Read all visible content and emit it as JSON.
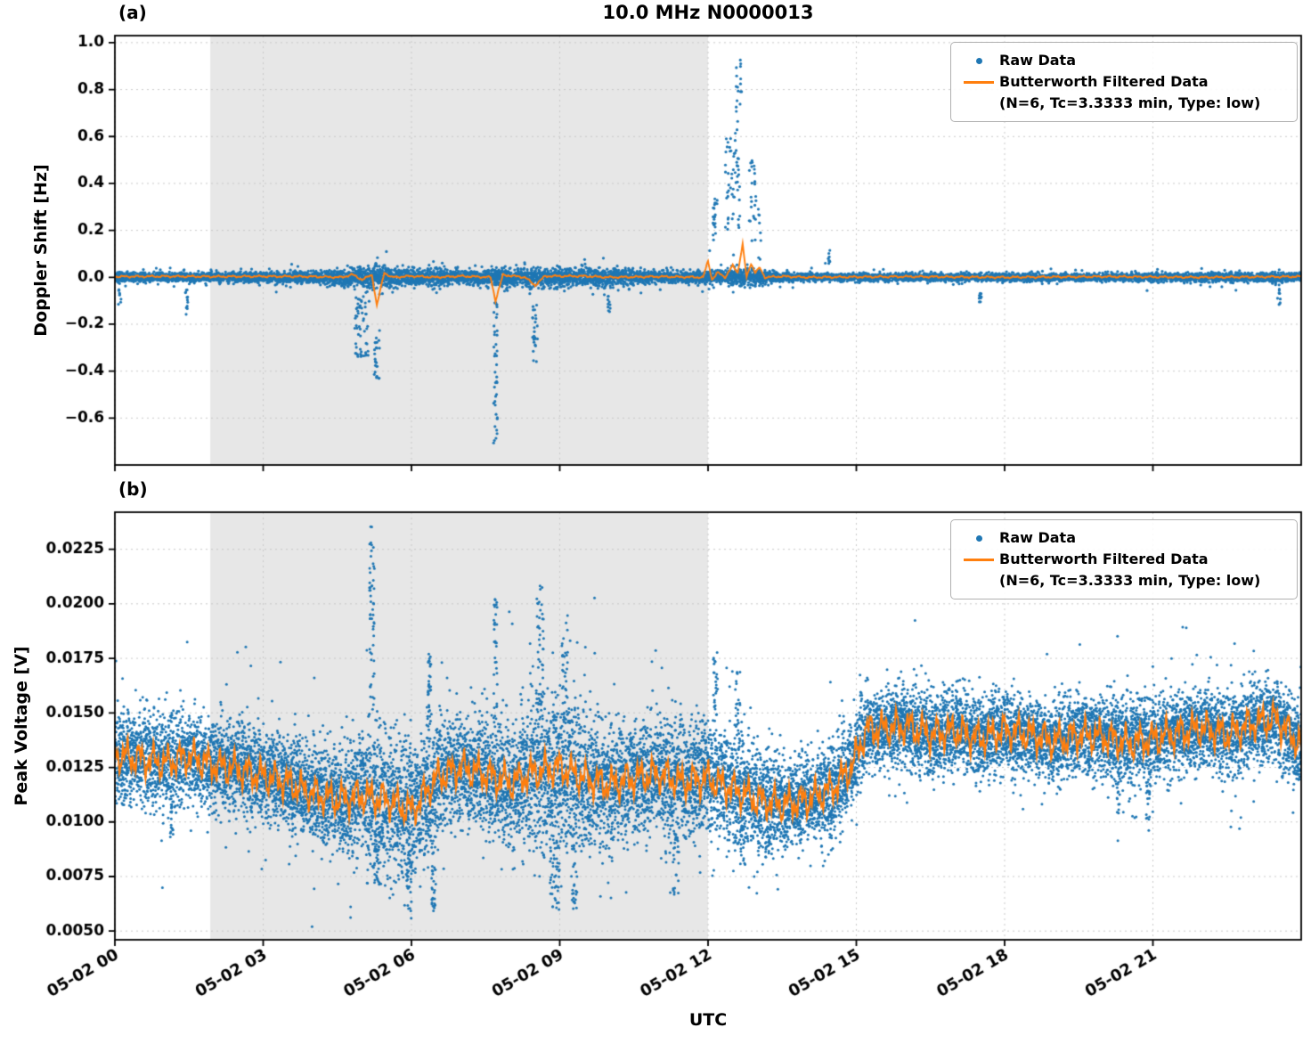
{
  "chart_data": {
    "type": "scatter",
    "title": "10.0 MHz N0000013",
    "xlabel": "UTC",
    "colors": {
      "raw": "#1f77b4",
      "filtered": "#ff7f0e",
      "shade": "#e7e7e7",
      "grid": "#c9c9c9",
      "axis": "#000000"
    },
    "legend": {
      "raw_label": "Raw Data",
      "filtered_label": "Butterworth Filtered Data",
      "filtered_sublabel": "(N=6, Tc=3.3333 min, Type: low)"
    },
    "shaded_region_hours": [
      1.93,
      12.0
    ],
    "x": {
      "lim": [
        0,
        24
      ],
      "ticks": [
        0,
        3,
        6,
        9,
        12,
        15,
        18,
        21
      ],
      "tick_labels": [
        "05-02 00",
        "05-02 03",
        "05-02 06",
        "05-02 09",
        "05-02 12",
        "05-02 15",
        "05-02 18",
        "05-02 21"
      ]
    },
    "panels": [
      {
        "panel_label": "(a)",
        "ylabel": "Doppler Shift [Hz]",
        "ylim": [
          -0.8,
          1.03
        ],
        "yticks": [
          1.0,
          0.8,
          0.6,
          0.4,
          0.2,
          0.0,
          -0.2,
          -0.4,
          -0.6
        ],
        "ytick_labels": [
          "1.0",
          "0.8",
          "0.6",
          "0.4",
          "0.2",
          "0.0",
          "−0.2",
          "−0.4",
          "−0.6"
        ],
        "raw_band": {
          "samples_per_hour": 400,
          "points": [
            [
              0,
              0,
              0.01
            ],
            [
              2,
              0,
              0.01
            ],
            [
              3,
              0,
              0.011
            ],
            [
              4,
              0,
              0.011
            ],
            [
              4.5,
              0,
              0.016
            ],
            [
              5,
              0,
              0.026
            ],
            [
              5.5,
              0,
              0.024
            ],
            [
              6,
              0,
              0.015
            ],
            [
              6.5,
              0,
              0.018
            ],
            [
              7,
              0,
              0.015
            ],
            [
              7.5,
              0,
              0.018
            ],
            [
              8,
              0,
              0.02
            ],
            [
              8.5,
              0,
              0.02
            ],
            [
              9,
              0,
              0.022
            ],
            [
              9.5,
              0,
              0.022
            ],
            [
              10,
              0,
              0.018
            ],
            [
              10.5,
              0,
              0.017
            ],
            [
              11,
              0,
              0.014
            ],
            [
              11.5,
              0,
              0.012
            ],
            [
              12,
              0,
              0.014
            ],
            [
              12.5,
              0.005,
              0.02
            ],
            [
              13,
              0,
              0.015
            ],
            [
              13.5,
              0,
              0.01
            ],
            [
              14,
              0,
              0.008
            ],
            [
              16,
              0,
              0.008
            ],
            [
              18,
              0,
              0.008
            ],
            [
              20,
              0,
              0.008
            ],
            [
              22,
              0,
              0.009
            ],
            [
              24,
              0,
              0.01
            ]
          ]
        },
        "events": [
          [
            0.1,
            0.06,
            -0.13,
            -0.04,
            8
          ],
          [
            1.45,
            0.06,
            -0.17,
            -0.05,
            12
          ],
          [
            5.0,
            0.3,
            -0.34,
            -0.08,
            55
          ],
          [
            5.3,
            0.12,
            -0.46,
            -0.18,
            25
          ],
          [
            7.7,
            0.08,
            -0.72,
            -0.1,
            40
          ],
          [
            8.5,
            0.1,
            -0.36,
            -0.1,
            25
          ],
          [
            10.0,
            0.06,
            -0.16,
            -0.06,
            10
          ],
          [
            12.15,
            0.1,
            0.15,
            0.35,
            20
          ],
          [
            12.5,
            0.3,
            0.2,
            0.62,
            55
          ],
          [
            12.62,
            0.12,
            0.62,
            0.95,
            18
          ],
          [
            12.9,
            0.14,
            0.15,
            0.52,
            25
          ],
          [
            13.05,
            0.08,
            -0.05,
            0.3,
            12
          ],
          [
            14.45,
            0.05,
            0.05,
            0.12,
            8
          ],
          [
            17.5,
            0.06,
            -0.14,
            -0.06,
            10
          ],
          [
            23.55,
            0.07,
            -0.12,
            -0.05,
            10
          ]
        ],
        "filtered": {
          "wiggle_amp": 0.005,
          "points": [
            [
              0,
              0.003
            ],
            [
              1,
              0.004
            ],
            [
              2,
              0.003
            ],
            [
              3,
              0.004
            ],
            [
              4,
              0.003
            ],
            [
              4.6,
              0.0
            ],
            [
              4.8,
              0.012
            ],
            [
              5.0,
              -0.01
            ],
            [
              5.2,
              0.01
            ],
            [
              5.3,
              -0.12
            ],
            [
              5.45,
              0.02
            ],
            [
              5.6,
              0.0
            ],
            [
              6,
              0.005
            ],
            [
              6.5,
              0
            ],
            [
              7,
              0.005
            ],
            [
              7.6,
              0
            ],
            [
              7.7,
              -0.1
            ],
            [
              7.85,
              0.01
            ],
            [
              8.3,
              0
            ],
            [
              8.5,
              -0.035
            ],
            [
              8.7,
              0.005
            ],
            [
              9.5,
              0.005
            ],
            [
              10,
              0
            ],
            [
              11,
              0.003
            ],
            [
              11.9,
              0
            ],
            [
              12.0,
              0.07
            ],
            [
              12.08,
              -0.01
            ],
            [
              12.2,
              0.02
            ],
            [
              12.35,
              0
            ],
            [
              12.5,
              0.05
            ],
            [
              12.6,
              0.02
            ],
            [
              12.7,
              0.14
            ],
            [
              12.78,
              0
            ],
            [
              12.87,
              0.06
            ],
            [
              12.95,
              0.02
            ],
            [
              13.05,
              0.04
            ],
            [
              13.15,
              0
            ],
            [
              13.5,
              0.004
            ],
            [
              14,
              0
            ],
            [
              16,
              0.003
            ],
            [
              18,
              0
            ],
            [
              20,
              0.003
            ],
            [
              22,
              0
            ],
            [
              24,
              0.003
            ]
          ]
        }
      },
      {
        "panel_label": "(b)",
        "ylabel": "Peak Voltage [V]",
        "ylim": [
          0.0046,
          0.0242
        ],
        "yticks": [
          0.0225,
          0.02,
          0.0175,
          0.015,
          0.0125,
          0.01,
          0.0075,
          0.005
        ],
        "ytick_labels": [
          "0.0225",
          "0.0200",
          "0.0175",
          "0.0150",
          "0.0125",
          "0.0100",
          "0.0075",
          "0.0050"
        ],
        "raw_band": {
          "samples_per_hour": 700,
          "points": [
            [
              0,
              0.0131,
              0.001
            ],
            [
              0.5,
              0.0129,
              0.001
            ],
            [
              1,
              0.0127,
              0.0011
            ],
            [
              1.5,
              0.013,
              0.001
            ],
            [
              2,
              0.0126,
              0.001
            ],
            [
              2.5,
              0.0124,
              0.001
            ],
            [
              3,
              0.0121,
              0.001
            ],
            [
              3.5,
              0.0118,
              0.001
            ],
            [
              4,
              0.0113,
              0.0011
            ],
            [
              4.5,
              0.011,
              0.0012
            ],
            [
              5,
              0.0112,
              0.0015
            ],
            [
              5.5,
              0.011,
              0.0016
            ],
            [
              6,
              0.0105,
              0.0014
            ],
            [
              6.5,
              0.012,
              0.0014
            ],
            [
              7,
              0.0125,
              0.0012
            ],
            [
              7.5,
              0.0122,
              0.0013
            ],
            [
              8,
              0.0118,
              0.0013
            ],
            [
              8.5,
              0.0123,
              0.0016
            ],
            [
              9,
              0.0125,
              0.0018
            ],
            [
              9.5,
              0.012,
              0.0015
            ],
            [
              10,
              0.0117,
              0.0013
            ],
            [
              10.5,
              0.012,
              0.0013
            ],
            [
              11,
              0.0122,
              0.0013
            ],
            [
              11.5,
              0.0118,
              0.0014
            ],
            [
              12,
              0.012,
              0.0013
            ],
            [
              12.5,
              0.0115,
              0.0013
            ],
            [
              13,
              0.011,
              0.0012
            ],
            [
              13.5,
              0.0108,
              0.0011
            ],
            [
              14,
              0.011,
              0.001
            ],
            [
              14.5,
              0.0115,
              0.001
            ],
            [
              14.9,
              0.0125,
              0.001
            ],
            [
              15.2,
              0.0142,
              0.0009
            ],
            [
              16,
              0.0144,
              0.0009
            ],
            [
              16.5,
              0.014,
              0.001
            ],
            [
              17,
              0.0142,
              0.0009
            ],
            [
              17.5,
              0.0138,
              0.0009
            ],
            [
              18,
              0.0142,
              0.0009
            ],
            [
              18.5,
              0.014,
              0.0009
            ],
            [
              19,
              0.0137,
              0.0009
            ],
            [
              19.5,
              0.014,
              0.0009
            ],
            [
              20,
              0.0139,
              0.0009
            ],
            [
              20.5,
              0.0136,
              0.001
            ],
            [
              21,
              0.0138,
              0.0009
            ],
            [
              21.5,
              0.0141,
              0.0009
            ],
            [
              22,
              0.0143,
              0.0009
            ],
            [
              22.5,
              0.014,
              0.0009
            ],
            [
              23,
              0.0145,
              0.0009
            ],
            [
              23.5,
              0.0147,
              0.0009
            ],
            [
              24,
              0.0135,
              0.001
            ]
          ]
        },
        "events": [
          [
            1.15,
            0.06,
            0.0093,
            0.0112,
            18
          ],
          [
            3.6,
            0.08,
            0.01,
            0.0112,
            12
          ],
          [
            5.2,
            0.1,
            0.0148,
            0.0236,
            55
          ],
          [
            5.3,
            0.12,
            0.0072,
            0.0098,
            30
          ],
          [
            5.95,
            0.1,
            0.0055,
            0.0092,
            35
          ],
          [
            6.35,
            0.09,
            0.0138,
            0.0178,
            35
          ],
          [
            6.45,
            0.08,
            0.0057,
            0.0092,
            28
          ],
          [
            7.7,
            0.07,
            0.015,
            0.0203,
            30
          ],
          [
            8.6,
            0.15,
            0.015,
            0.0212,
            45
          ],
          [
            8.9,
            0.2,
            0.0058,
            0.0092,
            45
          ],
          [
            9.1,
            0.12,
            0.0145,
            0.0195,
            35
          ],
          [
            9.3,
            0.1,
            0.006,
            0.009,
            25
          ],
          [
            11.35,
            0.12,
            0.0065,
            0.0095,
            30
          ],
          [
            12.15,
            0.1,
            0.0145,
            0.0178,
            28
          ],
          [
            12.6,
            0.1,
            0.014,
            0.017,
            22
          ],
          [
            12.7,
            0.1,
            0.008,
            0.0098,
            20
          ],
          [
            13.2,
            0.08,
            0.0083,
            0.0098,
            18
          ],
          [
            20.3,
            0.06,
            0.0104,
            0.0125,
            18
          ],
          [
            20.9,
            0.07,
            0.0096,
            0.012,
            20
          ],
          [
            23.9,
            0.08,
            0.012,
            0.014,
            15
          ]
        ],
        "filtered": {
          "wiggle_amp": 0.0009,
          "from_band": true
        }
      }
    ]
  }
}
